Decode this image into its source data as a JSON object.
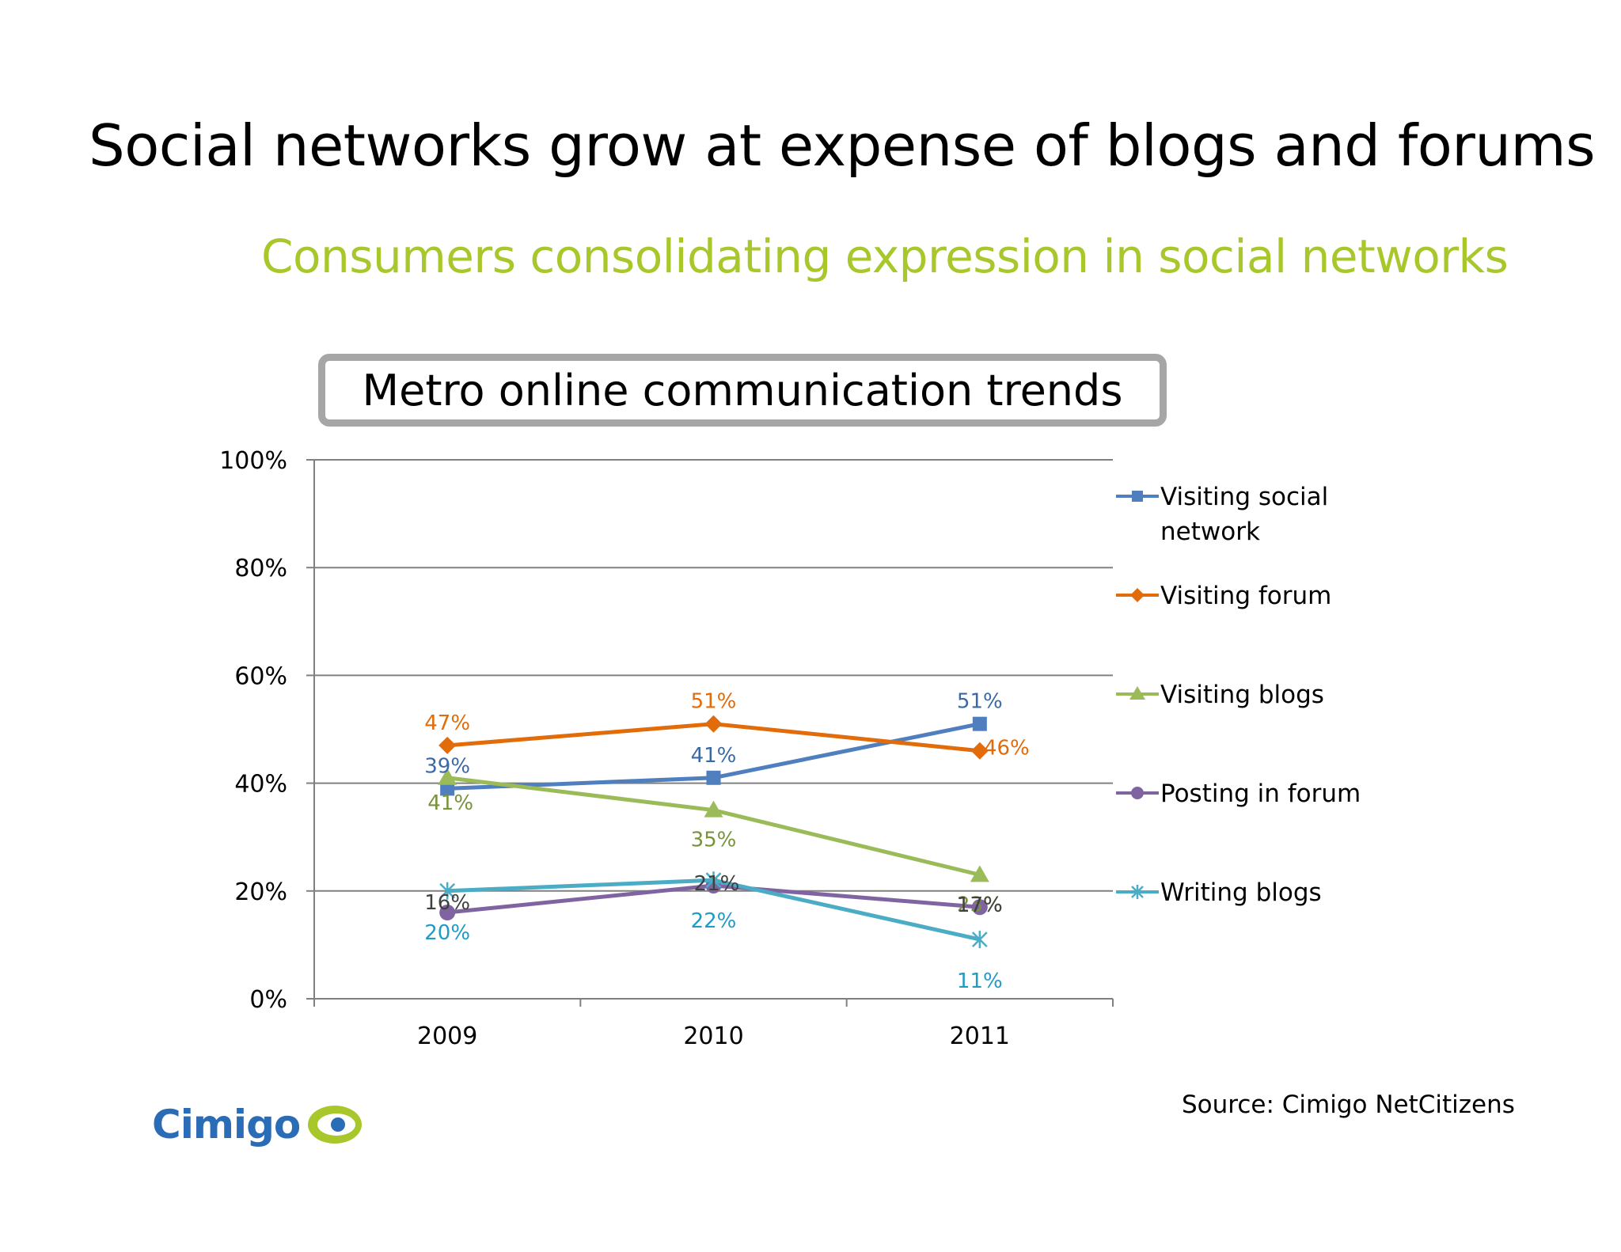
{
  "slide": {
    "title": "Social networks grow at expense of blogs and forums",
    "subtitle": "Consumers consolidating expression in social networks",
    "source": "Source: Cimigo NetCitizens",
    "logo_text": "Cimigo"
  },
  "colors": {
    "subtitle": "#a8c72a",
    "axis": "#808080",
    "gridline": "#808080"
  },
  "chart_data": {
    "type": "line",
    "title": "Metro online communication trends",
    "categories": [
      "2009",
      "2010",
      "2011"
    ],
    "ylim": [
      0,
      1
    ],
    "yticks": [
      "0%",
      "20%",
      "40%",
      "60%",
      "80%",
      "100%"
    ],
    "grid": true,
    "legend_position": "right",
    "series": [
      {
        "name": "Visiting social network",
        "values": [
          0.39,
          0.41,
          0.51
        ],
        "labels": [
          "39%",
          "41%",
          "51%"
        ],
        "color": "#4f7fbf",
        "label_color": "#3a6aa6",
        "marker": "square"
      },
      {
        "name": "Visiting forum",
        "values": [
          0.47,
          0.51,
          0.46
        ],
        "labels": [
          "47%",
          "51%",
          "46%"
        ],
        "color": "#e26b0a",
        "label_color": "#e26b0a",
        "marker": "diamond"
      },
      {
        "name": "Visiting blogs",
        "values": [
          0.41,
          0.35,
          0.23
        ],
        "labels": [
          "41%",
          "35%",
          "23%"
        ],
        "color": "#9bbb59",
        "label_color": "#77933c",
        "marker": "triangle"
      },
      {
        "name": "Posting in forum",
        "values": [
          0.16,
          0.21,
          0.17
        ],
        "labels": [
          "16%",
          "21%",
          "17%"
        ],
        "color": "#8064a2",
        "label_color": "#404040",
        "marker": "circle"
      },
      {
        "name": "Writing blogs",
        "values": [
          0.2,
          0.22,
          0.11
        ],
        "labels": [
          "20%",
          "22%",
          "11%"
        ],
        "color": "#4bacc6",
        "label_color": "#1f9bc4",
        "marker": "star"
      }
    ]
  }
}
